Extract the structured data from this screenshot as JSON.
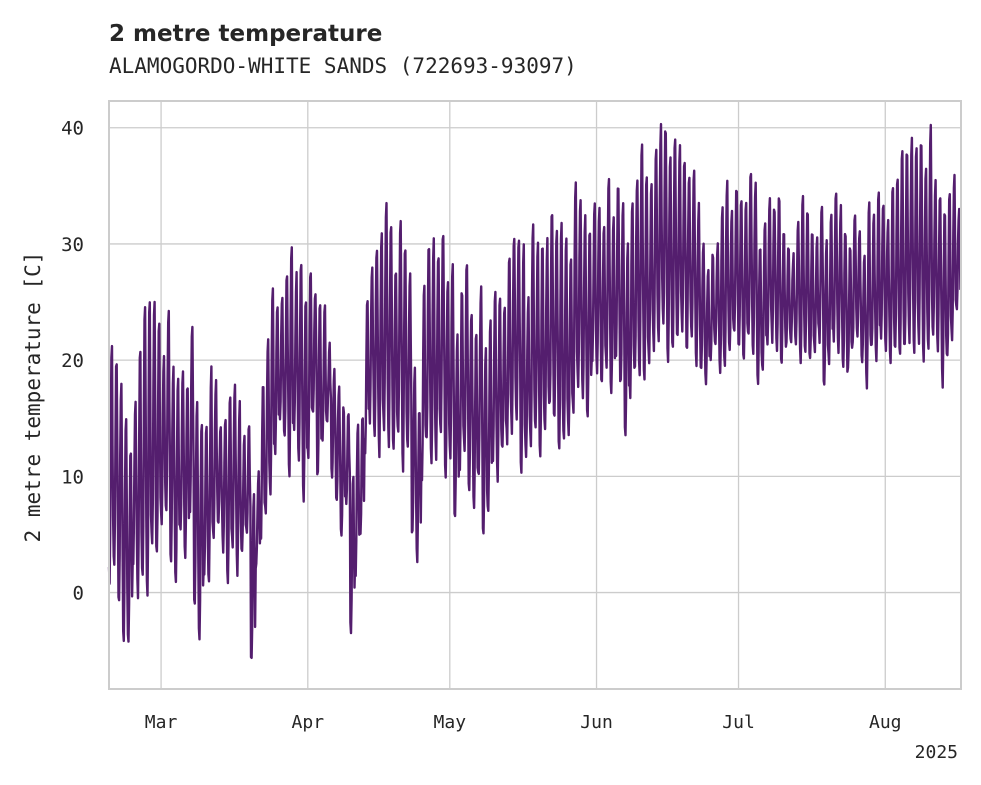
{
  "chart_data": {
    "type": "line",
    "title": "2 metre temperature",
    "subtitle": "ALAMOGORDO-WHITE SANDS (722693-93097)",
    "ylabel": "2 metre temperature [C]",
    "xlabel": "",
    "x_year_label": "2025",
    "x_range": [
      "2025-02-18",
      "2025-08-17"
    ],
    "ylim": [
      -8.3,
      42.3
    ],
    "y_ticks": [
      0,
      10,
      20,
      30,
      40
    ],
    "x_ticks": [
      {
        "date": "2025-03-01",
        "label": "Mar"
      },
      {
        "date": "2025-04-01",
        "label": "Apr"
      },
      {
        "date": "2025-05-01",
        "label": "May"
      },
      {
        "date": "2025-06-01",
        "label": "Jun"
      },
      {
        "date": "2025-07-01",
        "label": "Jul"
      },
      {
        "date": "2025-08-01",
        "label": "Aug"
      }
    ],
    "grid": true,
    "series": [
      {
        "color": "#541e6e",
        "sampling": "3-hourly",
        "start": "2025-02-18",
        "daily": [
          [
            "2025-02-18",
            1,
            21
          ],
          [
            "2025-02-19",
            2,
            20
          ],
          [
            "2025-02-20",
            -1,
            18
          ],
          [
            "2025-02-21",
            -4,
            15
          ],
          [
            "2025-02-22",
            -4,
            12
          ],
          [
            "2025-02-23",
            2,
            16
          ],
          [
            "2025-02-24",
            0,
            21
          ],
          [
            "2025-02-25",
            1,
            25
          ],
          [
            "2025-02-26",
            0,
            25
          ],
          [
            "2025-02-27",
            4,
            25
          ],
          [
            "2025-02-28",
            3,
            23
          ],
          [
            "2025-03-01",
            6,
            20
          ],
          [
            "2025-03-02",
            7,
            24
          ],
          [
            "2025-03-03",
            3,
            19
          ],
          [
            "2025-03-04",
            1,
            18
          ],
          [
            "2025-03-05",
            5,
            19
          ],
          [
            "2025-03-06",
            3,
            18
          ],
          [
            "2025-03-07",
            7,
            23
          ],
          [
            "2025-03-08",
            -1,
            16
          ],
          [
            "2025-03-09",
            -4,
            15
          ],
          [
            "2025-03-10",
            2,
            14
          ],
          [
            "2025-03-11",
            1,
            19
          ],
          [
            "2025-03-12",
            5,
            18
          ],
          [
            "2025-03-13",
            6,
            14
          ],
          [
            "2025-03-14",
            4,
            15
          ],
          [
            "2025-03-15",
            1,
            17
          ],
          [
            "2025-03-16",
            4,
            18
          ],
          [
            "2025-03-17",
            2,
            16
          ],
          [
            "2025-03-18",
            3,
            13
          ],
          [
            "2025-03-19",
            5,
            14
          ],
          [
            "2025-03-20",
            -6,
            8
          ],
          [
            "2025-03-21",
            2,
            10
          ],
          [
            "2025-03-22",
            5,
            18
          ],
          [
            "2025-03-23",
            7,
            22
          ],
          [
            "2025-03-24",
            9,
            26
          ],
          [
            "2025-03-25",
            12,
            25
          ],
          [
            "2025-03-26",
            15,
            25
          ],
          [
            "2025-03-27",
            13,
            27
          ],
          [
            "2025-03-28",
            10,
            30
          ],
          [
            "2025-03-29",
            14,
            27
          ],
          [
            "2025-03-30",
            11,
            28
          ],
          [
            "2025-03-31",
            8,
            25
          ],
          [
            "2025-04-01",
            12,
            28
          ],
          [
            "2025-04-02",
            15,
            26
          ],
          [
            "2025-04-03",
            10,
            25
          ],
          [
            "2025-04-04",
            13,
            25
          ],
          [
            "2025-04-05",
            15,
            21
          ],
          [
            "2025-04-06",
            10,
            19
          ],
          [
            "2025-04-07",
            8,
            18
          ],
          [
            "2025-04-08",
            5,
            16
          ],
          [
            "2025-04-09",
            8,
            15
          ],
          [
            "2025-04-10",
            -3,
            10
          ],
          [
            "2025-04-11",
            2,
            14
          ],
          [
            "2025-04-12",
            5,
            15
          ],
          [
            "2025-04-13",
            12,
            25
          ],
          [
            "2025-04-14",
            15,
            28
          ],
          [
            "2025-04-15",
            14,
            30
          ],
          [
            "2025-04-16",
            12,
            31
          ],
          [
            "2025-04-17",
            14,
            33
          ],
          [
            "2025-04-18",
            13,
            32
          ],
          [
            "2025-04-19",
            12,
            28
          ],
          [
            "2025-04-20",
            14,
            32
          ],
          [
            "2025-04-21",
            11,
            30
          ],
          [
            "2025-04-22",
            13,
            27
          ],
          [
            "2025-04-23",
            5,
            19
          ],
          [
            "2025-04-24",
            3,
            16
          ],
          [
            "2025-04-25",
            10,
            26
          ],
          [
            "2025-04-26",
            13,
            30
          ],
          [
            "2025-04-27",
            11,
            30
          ],
          [
            "2025-04-28",
            12,
            29
          ],
          [
            "2025-04-29",
            14,
            31
          ],
          [
            "2025-04-30",
            10,
            27
          ],
          [
            "2025-05-01",
            12,
            28
          ],
          [
            "2025-05-02",
            6,
            22
          ],
          [
            "2025-05-03",
            10,
            26
          ],
          [
            "2025-05-04",
            12,
            28
          ],
          [
            "2025-05-05",
            9,
            24
          ],
          [
            "2025-05-06",
            7,
            22
          ],
          [
            "2025-05-07",
            10,
            26
          ],
          [
            "2025-05-08",
            5,
            21
          ],
          [
            "2025-05-09",
            7,
            23
          ],
          [
            "2025-05-10",
            11,
            26
          ],
          [
            "2025-05-11",
            10,
            25
          ],
          [
            "2025-05-12",
            12,
            25
          ],
          [
            "2025-05-13",
            13,
            29
          ],
          [
            "2025-05-14",
            14,
            31
          ],
          [
            "2025-05-15",
            15,
            30
          ],
          [
            "2025-05-16",
            10,
            30
          ],
          [
            "2025-05-17",
            12,
            25
          ],
          [
            "2025-05-18",
            13,
            32
          ],
          [
            "2025-05-19",
            14,
            30
          ],
          [
            "2025-05-20",
            12,
            30
          ],
          [
            "2025-05-21",
            14,
            30
          ],
          [
            "2025-05-22",
            16,
            33
          ],
          [
            "2025-05-23",
            15,
            31
          ],
          [
            "2025-05-24",
            12,
            32
          ],
          [
            "2025-05-25",
            13,
            30
          ],
          [
            "2025-05-26",
            14,
            29
          ],
          [
            "2025-05-27",
            16,
            35
          ],
          [
            "2025-05-28",
            18,
            34
          ],
          [
            "2025-05-29",
            17,
            32
          ],
          [
            "2025-05-30",
            15,
            31
          ],
          [
            "2025-05-31",
            20,
            33
          ],
          [
            "2025-06-01",
            19,
            33
          ],
          [
            "2025-06-02",
            18,
            32
          ],
          [
            "2025-06-03",
            19,
            36
          ],
          [
            "2025-06-04",
            17,
            32
          ],
          [
            "2025-06-05",
            20,
            35
          ],
          [
            "2025-06-06",
            18,
            33
          ],
          [
            "2025-06-07",
            14,
            30
          ],
          [
            "2025-06-08",
            17,
            34
          ],
          [
            "2025-06-09",
            19,
            36
          ],
          [
            "2025-06-10",
            19,
            38
          ],
          [
            "2025-06-11",
            18,
            36
          ],
          [
            "2025-06-12",
            20,
            35
          ],
          [
            "2025-06-13",
            21,
            38
          ],
          [
            "2025-06-14",
            22,
            40
          ],
          [
            "2025-06-15",
            23,
            40
          ],
          [
            "2025-06-16",
            20,
            38
          ],
          [
            "2025-06-17",
            21,
            39
          ],
          [
            "2025-06-18",
            22,
            38
          ],
          [
            "2025-06-19",
            23,
            37
          ],
          [
            "2025-06-20",
            21,
            36
          ],
          [
            "2025-06-21",
            22,
            36
          ],
          [
            "2025-06-22",
            20,
            33
          ],
          [
            "2025-06-23",
            19,
            30
          ],
          [
            "2025-06-24",
            18,
            28
          ],
          [
            "2025-06-25",
            20,
            29
          ],
          [
            "2025-06-26",
            21,
            30
          ],
          [
            "2025-06-27",
            19,
            33
          ],
          [
            "2025-06-28",
            20,
            35
          ],
          [
            "2025-06-29",
            21,
            33
          ],
          [
            "2025-06-30",
            22,
            35
          ],
          [
            "2025-07-01",
            21,
            34
          ],
          [
            "2025-07-02",
            20,
            33
          ],
          [
            "2025-07-03",
            22,
            36
          ],
          [
            "2025-07-04",
            21,
            35
          ],
          [
            "2025-07-05",
            18,
            30
          ],
          [
            "2025-07-06",
            19,
            32
          ],
          [
            "2025-07-07",
            21,
            34
          ],
          [
            "2025-07-08",
            22,
            33
          ],
          [
            "2025-07-09",
            21,
            34
          ],
          [
            "2025-07-10",
            20,
            31
          ],
          [
            "2025-07-11",
            21,
            30
          ],
          [
            "2025-07-12",
            22,
            29
          ],
          [
            "2025-07-13",
            21,
            32
          ],
          [
            "2025-07-14",
            20,
            34
          ],
          [
            "2025-07-15",
            21,
            33
          ],
          [
            "2025-07-16",
            20,
            31
          ],
          [
            "2025-07-17",
            21,
            30
          ],
          [
            "2025-07-18",
            22,
            33
          ],
          [
            "2025-07-19",
            18,
            30
          ],
          [
            "2025-07-20",
            20,
            32
          ],
          [
            "2025-07-21",
            22,
            34
          ],
          [
            "2025-07-22",
            21,
            33
          ],
          [
            "2025-07-23",
            20,
            31
          ],
          [
            "2025-07-24",
            19,
            30
          ],
          [
            "2025-07-25",
            21,
            33
          ],
          [
            "2025-07-26",
            22,
            31
          ],
          [
            "2025-07-27",
            20,
            29
          ],
          [
            "2025-07-28",
            18,
            33
          ],
          [
            "2025-07-29",
            21,
            32
          ],
          [
            "2025-07-30",
            20,
            34
          ],
          [
            "2025-07-31",
            22,
            33
          ],
          [
            "2025-08-01",
            21,
            32
          ],
          [
            "2025-08-02",
            20,
            35
          ],
          [
            "2025-08-03",
            21,
            36
          ],
          [
            "2025-08-04",
            20,
            38
          ],
          [
            "2025-08-05",
            21,
            38
          ],
          [
            "2025-08-06",
            22,
            39
          ],
          [
            "2025-08-07",
            21,
            38
          ],
          [
            "2025-08-08",
            22,
            39
          ],
          [
            "2025-08-09",
            20,
            36
          ],
          [
            "2025-08-10",
            21,
            40
          ],
          [
            "2025-08-11",
            22,
            35
          ],
          [
            "2025-08-12",
            21,
            34
          ],
          [
            "2025-08-13",
            18,
            33
          ],
          [
            "2025-08-14",
            20,
            34
          ],
          [
            "2025-08-15",
            22,
            36
          ],
          [
            "2025-08-16",
            24,
            33
          ]
        ]
      }
    ]
  }
}
